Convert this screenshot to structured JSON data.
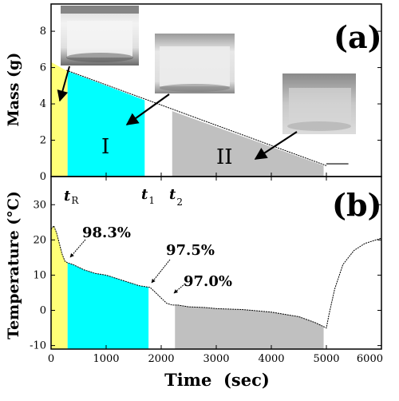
{
  "chart_data": [
    {
      "panel": "(a)",
      "type": "area",
      "ylabel": "Mass (g)",
      "xlim": [
        0,
        6000
      ],
      "ylim": [
        0,
        9.5
      ],
      "yticks": [
        0,
        2,
        4,
        6,
        8
      ],
      "mass_line": {
        "x": [
          280,
          5000
        ],
        "y": [
          5.85,
          0.6
        ]
      },
      "post_line": {
        "x": [
          5000,
          5400
        ],
        "y": [
          0.7,
          0.7
        ]
      },
      "regions": [
        {
          "name": "",
          "x": [
            0,
            300
          ],
          "y_top": [
            6.3,
            5.8
          ],
          "color": "#ffff77"
        },
        {
          "name": "I",
          "x": [
            300,
            1700
          ],
          "y_top": [
            5.8,
            4.2
          ],
          "color": "#00ffff"
        },
        {
          "name": "II",
          "x": [
            2200,
            4950
          ],
          "y_top": [
            3.6,
            0.6
          ],
          "color": "#c0c0c0"
        }
      ],
      "region_labels": [
        "I",
        "II"
      ],
      "markers": [
        "t",
        "t",
        "t"
      ],
      "marker_subs": [
        "R",
        "1",
        "2"
      ],
      "photo_count": 3
    },
    {
      "panel": "(b)",
      "type": "area",
      "ylabel": "Temperature (°C)",
      "xlabel": "Time  (sec)",
      "xlim": [
        0,
        6000
      ],
      "ylim": [
        -11,
        38
      ],
      "xticks": [
        0,
        1000,
        2000,
        3000,
        4000,
        5000,
        6000
      ],
      "yticks": [
        -10,
        0,
        10,
        20,
        30
      ],
      "temperature": {
        "x": [
          0,
          50,
          100,
          150,
          200,
          250,
          300,
          400,
          600,
          800,
          1000,
          1200,
          1400,
          1600,
          1800,
          1900,
          2000,
          2100,
          2200,
          2300,
          2500,
          2800,
          3000,
          3500,
          4000,
          4500,
          4800,
          5000,
          5050,
          5150,
          5300,
          5500,
          5700,
          5900,
          6000
        ],
        "y": [
          23,
          24,
          22,
          19,
          16,
          14,
          13.5,
          13,
          11.5,
          10.5,
          10,
          9,
          8,
          7,
          6.5,
          5,
          3.5,
          2,
          1.5,
          1.5,
          1,
          0.8,
          0.5,
          0.2,
          -0.5,
          -1.8,
          -3.5,
          -5,
          -1,
          6,
          13,
          17,
          19,
          20,
          20.5
        ]
      },
      "annotations": [
        {
          "text": "98.3%",
          "x": 300,
          "y": 13.5
        },
        {
          "text": "97.5%",
          "x": 1800,
          "y": 6.5
        },
        {
          "text": "97.0%",
          "x": 2200,
          "y": 1.5
        }
      ],
      "regions": [
        {
          "x0": 0,
          "x1": 300,
          "color": "#ffff77"
        },
        {
          "x0": 300,
          "x1": 1770,
          "color": "#00ffff"
        },
        {
          "x0": 2250,
          "x1": 4950,
          "color": "#c0c0c0"
        }
      ]
    }
  ]
}
